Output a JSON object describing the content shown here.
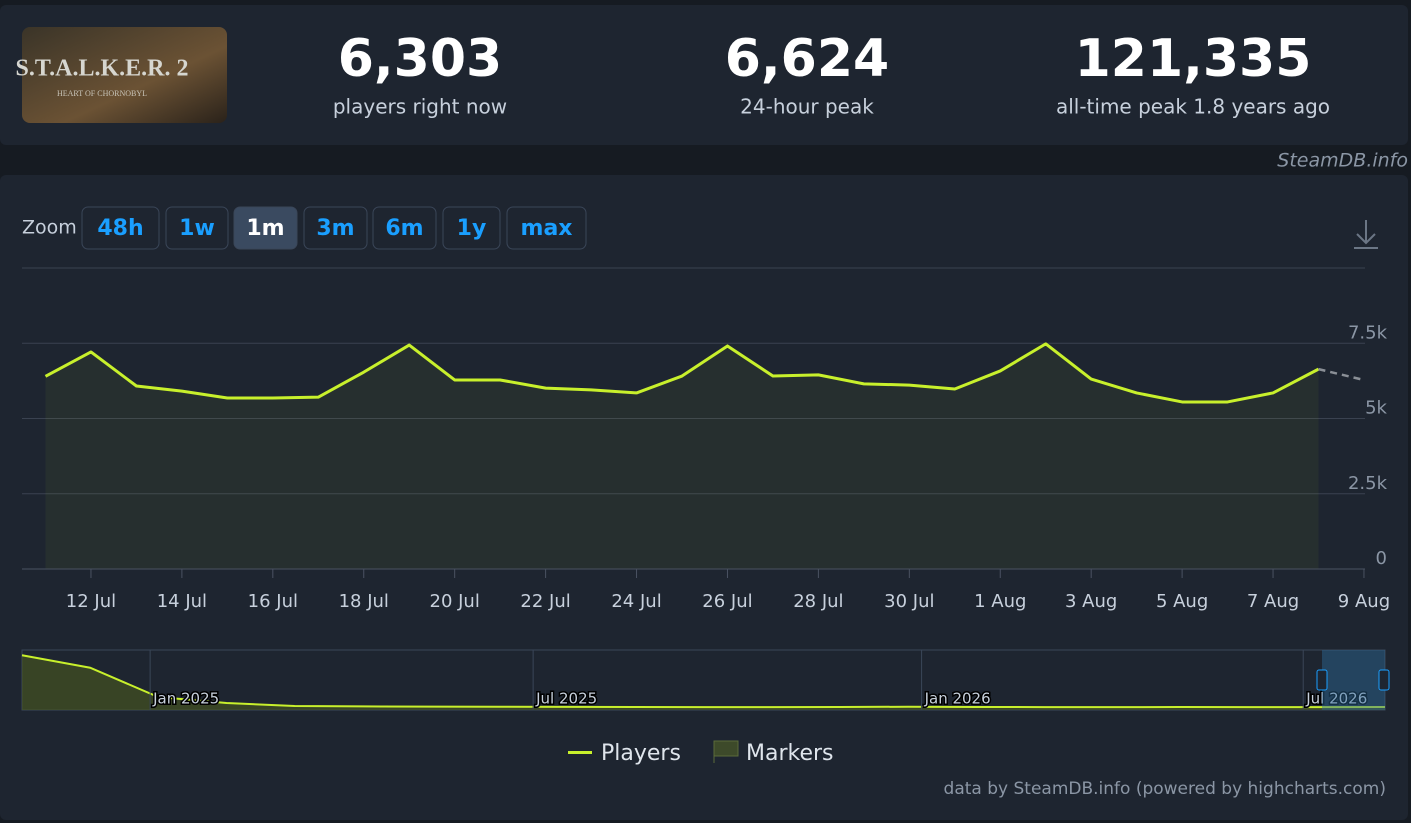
{
  "header": {
    "logo_title": "S.T.A.L.K.E.R. 2",
    "logo_subtitle": "HEART OF CHORNOBYL",
    "stats": [
      {
        "value": "6,303",
        "label": "players right now"
      },
      {
        "value": "6,624",
        "label": "24-hour peak"
      },
      {
        "value": "121,335",
        "label": "all-time peak 1.8 years ago"
      }
    ]
  },
  "credit_top": "SteamDB.info",
  "zoom": {
    "label": "Zoom",
    "buttons": [
      "48h",
      "1w",
      "1m",
      "3m",
      "6m",
      "1y",
      "max"
    ],
    "active": 2
  },
  "chart_data": [
    {
      "type": "line",
      "categories": [
        null,
        "12 Jul",
        null,
        "14 Jul",
        null,
        "16 Jul",
        null,
        "18 Jul",
        null,
        "20 Jul",
        null,
        "22 Jul",
        null,
        "24 Jul",
        null,
        "26 Jul",
        null,
        "28 Jul",
        null,
        "30 Jul",
        null,
        "1 Aug",
        null,
        "3 Aug",
        null,
        "5 Aug",
        null,
        "7 Aug",
        null,
        "9 Aug"
      ],
      "series": [
        {
          "name": "Players",
          "color": "#c8f02c",
          "values": [
            6400,
            7210,
            6080,
            5910,
            5680,
            5680,
            5710,
            6540,
            7440,
            6280,
            6280,
            6010,
            5950,
            5850,
            6410,
            7410,
            6410,
            6450,
            6150,
            6110,
            5980,
            6580,
            7480,
            6310,
            5850,
            5550,
            5550,
            5850,
            6640,
            6280
          ]
        }
      ],
      "last_segment_dashed": true,
      "markers_label": "Markers",
      "ylim": [
        0,
        10000
      ],
      "yticks": [
        0,
        {
          "value": 2500,
          "label": "2.5k"
        },
        {
          "value": 5000,
          "label": "5k"
        },
        {
          "value": 7500,
          "label": "7.5k"
        }
      ],
      "grid": true
    },
    {
      "type": "line",
      "values": [
        114000,
        88000,
        27000,
        14600,
        8300,
        7500,
        7000,
        6800,
        6500,
        6300,
        6100,
        6000,
        6200,
        6800,
        6300,
        6100,
        6000,
        6200,
        6000,
        6100,
        6300
      ],
      "xlim": [
        0,
        20
      ],
      "ylim": [
        0,
        125000
      ],
      "xticks": [
        {
          "value": 1.88,
          "label": "Jan 2025"
        },
        {
          "value": 7.5,
          "label": "Jul 2025"
        },
        {
          "value": 13.2,
          "label": "Jan 2026"
        },
        {
          "value": 18.8,
          "label": "Jul 2026"
        }
      ]
    }
  ],
  "footer": "data by SteamDB.info (powered by highcharts.com)"
}
